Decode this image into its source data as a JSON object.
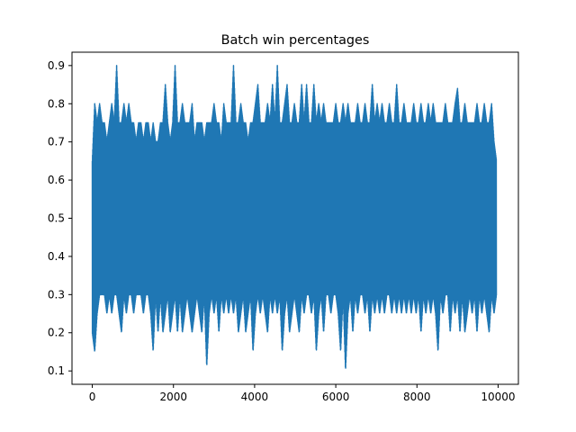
{
  "chart_data": {
    "type": "line",
    "title": "Batch win percentages",
    "xlabel": "",
    "ylabel": "",
    "xlim": [
      -500,
      10500
    ],
    "ylim": [
      0.065,
      0.935
    ],
    "x_ticks": [
      0,
      2000,
      4000,
      6000,
      8000,
      10000
    ],
    "x_tick_labels": [
      "0",
      "2000",
      "4000",
      "6000",
      "8000",
      "10000"
    ],
    "y_ticks": [
      0.1,
      0.2,
      0.3,
      0.4,
      0.5,
      0.6,
      0.7,
      0.8,
      0.9
    ],
    "y_tick_labels": [
      "0.1",
      "0.2",
      "0.3",
      "0.4",
      "0.5",
      "0.6",
      "0.7",
      "0.8",
      "0.9"
    ],
    "grid": false,
    "legend": "none",
    "series": [
      {
        "color": "#1f77b4",
        "x": [
          0,
          60,
          120,
          180,
          240,
          300,
          360,
          420,
          480,
          540,
          600,
          660,
          720,
          780,
          840,
          900,
          960,
          1020,
          1080,
          1140,
          1200,
          1260,
          1320,
          1380,
          1440,
          1500,
          1560,
          1620,
          1680,
          1740,
          1800,
          1860,
          1920,
          1980,
          2040,
          2100,
          2160,
          2220,
          2280,
          2340,
          2400,
          2460,
          2520,
          2580,
          2640,
          2700,
          2760,
          2820,
          2880,
          2940,
          3000,
          3060,
          3120,
          3180,
          3240,
          3300,
          3360,
          3420,
          3480,
          3540,
          3600,
          3660,
          3720,
          3780,
          3840,
          3900,
          3960,
          4020,
          4080,
          4140,
          4200,
          4260,
          4320,
          4380,
          4440,
          4500,
          4560,
          4620,
          4680,
          4740,
          4800,
          4860,
          4920,
          4980,
          5040,
          5100,
          5160,
          5220,
          5280,
          5340,
          5400,
          5460,
          5520,
          5580,
          5640,
          5700,
          5760,
          5820,
          5880,
          5940,
          6000,
          6060,
          6120,
          6180,
          6240,
          6300,
          6360,
          6420,
          6480,
          6540,
          6600,
          6660,
          6720,
          6780,
          6840,
          6900,
          6960,
          7020,
          7080,
          7140,
          7200,
          7260,
          7320,
          7380,
          7440,
          7500,
          7560,
          7620,
          7680,
          7740,
          7800,
          7860,
          7920,
          7980,
          8040,
          8100,
          8160,
          8220,
          8280,
          8340,
          8400,
          8460,
          8520,
          8580,
          8640,
          8700,
          8760,
          8820,
          8880,
          8940,
          9000,
          9060,
          9120,
          9180,
          9240,
          9300,
          9360,
          9420,
          9480,
          9540,
          9600,
          9660,
          9720,
          9780,
          9840,
          9900,
          9960,
          10000
        ],
        "max": [
          0.65,
          0.8,
          0.75,
          0.8,
          0.75,
          0.75,
          0.7,
          0.75,
          0.8,
          0.75,
          0.9,
          0.75,
          0.75,
          0.8,
          0.75,
          0.8,
          0.75,
          0.75,
          0.7,
          0.75,
          0.75,
          0.7,
          0.75,
          0.75,
          0.7,
          0.75,
          0.7,
          0.7,
          0.75,
          0.75,
          0.85,
          0.75,
          0.7,
          0.75,
          0.9,
          0.75,
          0.75,
          0.8,
          0.75,
          0.75,
          0.75,
          0.8,
          0.7,
          0.75,
          0.75,
          0.75,
          0.7,
          0.75,
          0.75,
          0.75,
          0.8,
          0.75,
          0.75,
          0.7,
          0.8,
          0.75,
          0.75,
          0.75,
          0.9,
          0.75,
          0.75,
          0.8,
          0.75,
          0.75,
          0.7,
          0.75,
          0.75,
          0.8,
          0.85,
          0.75,
          0.75,
          0.75,
          0.8,
          0.75,
          0.85,
          0.75,
          0.9,
          0.75,
          0.75,
          0.8,
          0.85,
          0.75,
          0.75,
          0.8,
          0.75,
          0.75,
          0.85,
          0.75,
          0.85,
          0.75,
          0.75,
          0.85,
          0.75,
          0.8,
          0.75,
          0.8,
          0.75,
          0.75,
          0.75,
          0.75,
          0.8,
          0.75,
          0.75,
          0.8,
          0.75,
          0.8,
          0.75,
          0.75,
          0.75,
          0.8,
          0.75,
          0.75,
          0.8,
          0.75,
          0.75,
          0.85,
          0.75,
          0.8,
          0.75,
          0.8,
          0.75,
          0.75,
          0.8,
          0.75,
          0.75,
          0.85,
          0.75,
          0.75,
          0.8,
          0.75,
          0.75,
          0.75,
          0.8,
          0.75,
          0.75,
          0.8,
          0.75,
          0.75,
          0.8,
          0.75,
          0.8,
          0.75,
          0.75,
          0.75,
          0.75,
          0.8,
          0.75,
          0.75,
          0.75,
          0.8,
          0.84,
          0.75,
          0.75,
          0.8,
          0.75,
          0.75,
          0.75,
          0.75,
          0.8,
          0.75,
          0.75,
          0.8,
          0.75,
          0.75,
          0.8,
          0.7,
          0.65
        ],
        "min": [
          0.2,
          0.15,
          0.25,
          0.3,
          0.3,
          0.3,
          0.25,
          0.3,
          0.25,
          0.3,
          0.3,
          0.25,
          0.2,
          0.3,
          0.25,
          0.3,
          0.3,
          0.25,
          0.3,
          0.3,
          0.3,
          0.25,
          0.3,
          0.3,
          0.25,
          0.15,
          0.3,
          0.2,
          0.3,
          0.2,
          0.25,
          0.3,
          0.2,
          0.25,
          0.3,
          0.2,
          0.3,
          0.2,
          0.25,
          0.3,
          0.25,
          0.2,
          0.25,
          0.3,
          0.25,
          0.2,
          0.3,
          0.11,
          0.25,
          0.3,
          0.25,
          0.3,
          0.2,
          0.3,
          0.25,
          0.3,
          0.25,
          0.3,
          0.25,
          0.3,
          0.2,
          0.25,
          0.3,
          0.2,
          0.25,
          0.3,
          0.15,
          0.25,
          0.3,
          0.25,
          0.3,
          0.25,
          0.2,
          0.3,
          0.25,
          0.3,
          0.25,
          0.3,
          0.15,
          0.25,
          0.3,
          0.2,
          0.25,
          0.3,
          0.25,
          0.2,
          0.3,
          0.25,
          0.3,
          0.3,
          0.25,
          0.3,
          0.15,
          0.25,
          0.3,
          0.2,
          0.3,
          0.3,
          0.25,
          0.3,
          0.3,
          0.25,
          0.15,
          0.3,
          0.1,
          0.25,
          0.3,
          0.2,
          0.3,
          0.25,
          0.3,
          0.3,
          0.25,
          0.3,
          0.2,
          0.3,
          0.25,
          0.3,
          0.25,
          0.3,
          0.25,
          0.3,
          0.3,
          0.25,
          0.3,
          0.25,
          0.3,
          0.25,
          0.3,
          0.25,
          0.3,
          0.25,
          0.3,
          0.25,
          0.3,
          0.2,
          0.3,
          0.25,
          0.3,
          0.25,
          0.3,
          0.25,
          0.15,
          0.3,
          0.25,
          0.3,
          0.3,
          0.2,
          0.3,
          0.25,
          0.3,
          0.2,
          0.3,
          0.2,
          0.25,
          0.3,
          0.25,
          0.3,
          0.2,
          0.3,
          0.25,
          0.3,
          0.25,
          0.2,
          0.3,
          0.25,
          0.3,
          0.25,
          0.3
        ]
      }
    ]
  }
}
